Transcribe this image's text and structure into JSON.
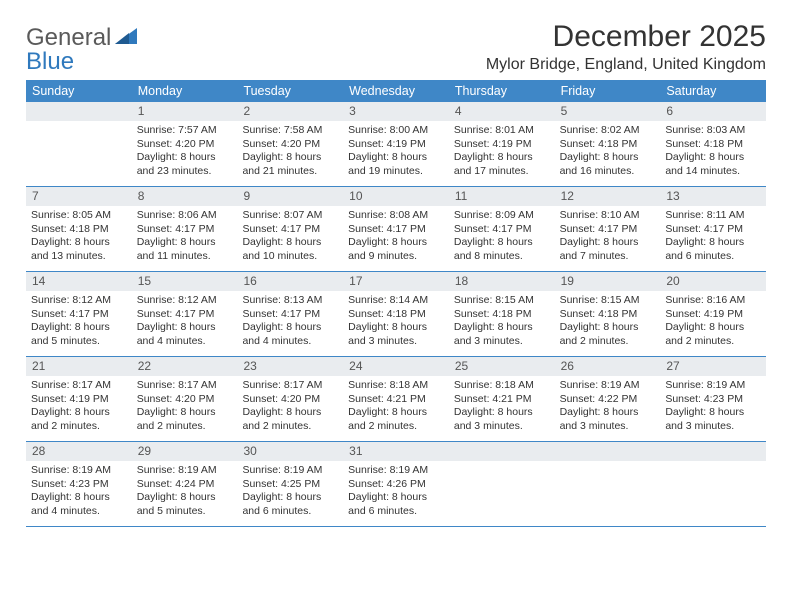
{
  "logo": {
    "text1": "General",
    "text2": "Blue"
  },
  "title": "December 2025",
  "location": "Mylor Bridge, England, United Kingdom",
  "colors": {
    "header_bg": "#3f87c7",
    "header_text": "#ffffff",
    "daynum_bg": "#e9ecef",
    "border": "#3f87c7",
    "logo_gray": "#5a5a5a",
    "logo_blue": "#2f79bd"
  },
  "day_names": [
    "Sunday",
    "Monday",
    "Tuesday",
    "Wednesday",
    "Thursday",
    "Friday",
    "Saturday"
  ],
  "weeks": [
    [
      null,
      {
        "n": "1",
        "sr": "Sunrise: 7:57 AM",
        "ss": "Sunset: 4:20 PM",
        "dl": "Daylight: 8 hours and 23 minutes."
      },
      {
        "n": "2",
        "sr": "Sunrise: 7:58 AM",
        "ss": "Sunset: 4:20 PM",
        "dl": "Daylight: 8 hours and 21 minutes."
      },
      {
        "n": "3",
        "sr": "Sunrise: 8:00 AM",
        "ss": "Sunset: 4:19 PM",
        "dl": "Daylight: 8 hours and 19 minutes."
      },
      {
        "n": "4",
        "sr": "Sunrise: 8:01 AM",
        "ss": "Sunset: 4:19 PM",
        "dl": "Daylight: 8 hours and 17 minutes."
      },
      {
        "n": "5",
        "sr": "Sunrise: 8:02 AM",
        "ss": "Sunset: 4:18 PM",
        "dl": "Daylight: 8 hours and 16 minutes."
      },
      {
        "n": "6",
        "sr": "Sunrise: 8:03 AM",
        "ss": "Sunset: 4:18 PM",
        "dl": "Daylight: 8 hours and 14 minutes."
      }
    ],
    [
      {
        "n": "7",
        "sr": "Sunrise: 8:05 AM",
        "ss": "Sunset: 4:18 PM",
        "dl": "Daylight: 8 hours and 13 minutes."
      },
      {
        "n": "8",
        "sr": "Sunrise: 8:06 AM",
        "ss": "Sunset: 4:17 PM",
        "dl": "Daylight: 8 hours and 11 minutes."
      },
      {
        "n": "9",
        "sr": "Sunrise: 8:07 AM",
        "ss": "Sunset: 4:17 PM",
        "dl": "Daylight: 8 hours and 10 minutes."
      },
      {
        "n": "10",
        "sr": "Sunrise: 8:08 AM",
        "ss": "Sunset: 4:17 PM",
        "dl": "Daylight: 8 hours and 9 minutes."
      },
      {
        "n": "11",
        "sr": "Sunrise: 8:09 AM",
        "ss": "Sunset: 4:17 PM",
        "dl": "Daylight: 8 hours and 8 minutes."
      },
      {
        "n": "12",
        "sr": "Sunrise: 8:10 AM",
        "ss": "Sunset: 4:17 PM",
        "dl": "Daylight: 8 hours and 7 minutes."
      },
      {
        "n": "13",
        "sr": "Sunrise: 8:11 AM",
        "ss": "Sunset: 4:17 PM",
        "dl": "Daylight: 8 hours and 6 minutes."
      }
    ],
    [
      {
        "n": "14",
        "sr": "Sunrise: 8:12 AM",
        "ss": "Sunset: 4:17 PM",
        "dl": "Daylight: 8 hours and 5 minutes."
      },
      {
        "n": "15",
        "sr": "Sunrise: 8:12 AM",
        "ss": "Sunset: 4:17 PM",
        "dl": "Daylight: 8 hours and 4 minutes."
      },
      {
        "n": "16",
        "sr": "Sunrise: 8:13 AM",
        "ss": "Sunset: 4:17 PM",
        "dl": "Daylight: 8 hours and 4 minutes."
      },
      {
        "n": "17",
        "sr": "Sunrise: 8:14 AM",
        "ss": "Sunset: 4:18 PM",
        "dl": "Daylight: 8 hours and 3 minutes."
      },
      {
        "n": "18",
        "sr": "Sunrise: 8:15 AM",
        "ss": "Sunset: 4:18 PM",
        "dl": "Daylight: 8 hours and 3 minutes."
      },
      {
        "n": "19",
        "sr": "Sunrise: 8:15 AM",
        "ss": "Sunset: 4:18 PM",
        "dl": "Daylight: 8 hours and 2 minutes."
      },
      {
        "n": "20",
        "sr": "Sunrise: 8:16 AM",
        "ss": "Sunset: 4:19 PM",
        "dl": "Daylight: 8 hours and 2 minutes."
      }
    ],
    [
      {
        "n": "21",
        "sr": "Sunrise: 8:17 AM",
        "ss": "Sunset: 4:19 PM",
        "dl": "Daylight: 8 hours and 2 minutes."
      },
      {
        "n": "22",
        "sr": "Sunrise: 8:17 AM",
        "ss": "Sunset: 4:20 PM",
        "dl": "Daylight: 8 hours and 2 minutes."
      },
      {
        "n": "23",
        "sr": "Sunrise: 8:17 AM",
        "ss": "Sunset: 4:20 PM",
        "dl": "Daylight: 8 hours and 2 minutes."
      },
      {
        "n": "24",
        "sr": "Sunrise: 8:18 AM",
        "ss": "Sunset: 4:21 PM",
        "dl": "Daylight: 8 hours and 2 minutes."
      },
      {
        "n": "25",
        "sr": "Sunrise: 8:18 AM",
        "ss": "Sunset: 4:21 PM",
        "dl": "Daylight: 8 hours and 3 minutes."
      },
      {
        "n": "26",
        "sr": "Sunrise: 8:19 AM",
        "ss": "Sunset: 4:22 PM",
        "dl": "Daylight: 8 hours and 3 minutes."
      },
      {
        "n": "27",
        "sr": "Sunrise: 8:19 AM",
        "ss": "Sunset: 4:23 PM",
        "dl": "Daylight: 8 hours and 3 minutes."
      }
    ],
    [
      {
        "n": "28",
        "sr": "Sunrise: 8:19 AM",
        "ss": "Sunset: 4:23 PM",
        "dl": "Daylight: 8 hours and 4 minutes."
      },
      {
        "n": "29",
        "sr": "Sunrise: 8:19 AM",
        "ss": "Sunset: 4:24 PM",
        "dl": "Daylight: 8 hours and 5 minutes."
      },
      {
        "n": "30",
        "sr": "Sunrise: 8:19 AM",
        "ss": "Sunset: 4:25 PM",
        "dl": "Daylight: 8 hours and 6 minutes."
      },
      {
        "n": "31",
        "sr": "Sunrise: 8:19 AM",
        "ss": "Sunset: 4:26 PM",
        "dl": "Daylight: 8 hours and 6 minutes."
      },
      null,
      null,
      null
    ]
  ]
}
